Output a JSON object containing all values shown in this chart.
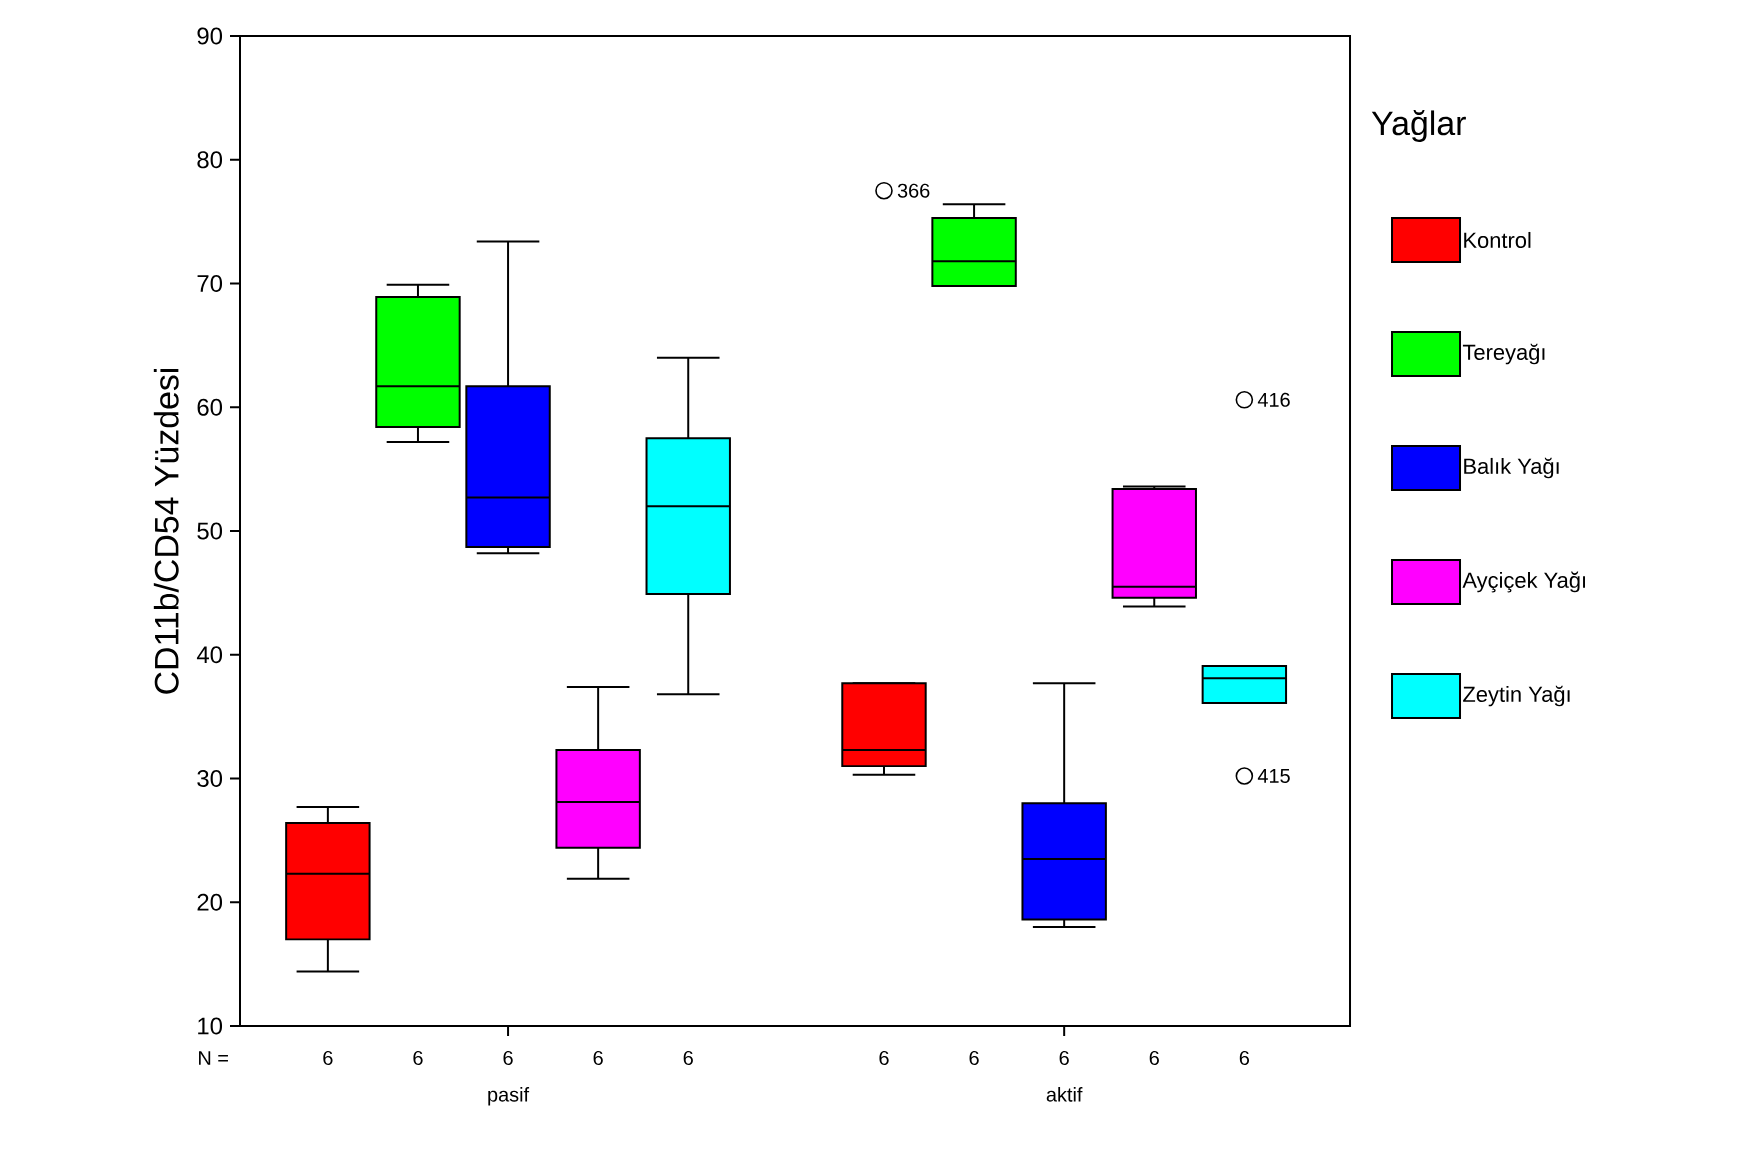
{
  "chart_data": {
    "type": "box",
    "ylabel": "CD11b/CD54 Yüzdesi",
    "legend_title": "Yağlar",
    "legend": "right",
    "categories": [
      "pasif",
      "aktif"
    ],
    "ylim": [
      10,
      90
    ],
    "yticks": [
      10,
      20,
      30,
      40,
      50,
      60,
      70,
      80,
      90
    ],
    "series": [
      {
        "name": "Kontrol",
        "color": "#ff0000",
        "boxes": [
          {
            "low": 14.4,
            "q1": 17.0,
            "median": 22.3,
            "q3": 26.4,
            "high": 27.7
          },
          {
            "low": 30.3,
            "q1": 31.0,
            "median": 32.3,
            "q3": 37.7,
            "high": 37.7,
            "outliers": [
              77.5
            ]
          }
        ]
      },
      {
        "name": "Tereyağı",
        "color": "#00ff00",
        "boxes": [
          {
            "low": 57.2,
            "q1": 58.4,
            "median": 61.7,
            "q3": 68.9,
            "high": 69.9
          },
          {
            "low": 69.8,
            "q1": 69.8,
            "median": 71.8,
            "q3": 75.3,
            "high": 76.4
          }
        ]
      },
      {
        "name": "Balık Yağı",
        "color": "#0000ff",
        "boxes": [
          {
            "low": 48.2,
            "q1": 48.7,
            "median": 52.7,
            "q3": 61.7,
            "high": 73.4
          },
          {
            "low": 18.0,
            "q1": 18.6,
            "median": 23.5,
            "q3": 28.0,
            "high": 37.7
          }
        ]
      },
      {
        "name": "Ayçiçek Yağı",
        "color": "#ff00ff",
        "boxes": [
          {
            "low": 21.9,
            "q1": 24.4,
            "median": 28.1,
            "q3": 32.3,
            "high": 37.4
          },
          {
            "low": 43.9,
            "q1": 44.6,
            "median": 45.5,
            "q3": 53.4,
            "high": 53.6
          }
        ]
      },
      {
        "name": "Zeytin Yağı",
        "color": "#00ffff",
        "boxes": [
          {
            "low": 36.8,
            "q1": 44.9,
            "median": 52.0,
            "q3": 57.5,
            "high": 64.0
          },
          {
            "low": 36.1,
            "q1": 36.1,
            "median": 38.1,
            "q3": 39.1,
            "high": 39.1,
            "outliers": [
              60.6,
              30.2
            ]
          }
        ]
      }
    ],
    "annotations": [
      "N =",
      "6",
      "6",
      "6",
      "6",
      "6",
      "6",
      "6",
      "6",
      "6",
      "6",
      "366",
      "416",
      "415"
    ]
  }
}
